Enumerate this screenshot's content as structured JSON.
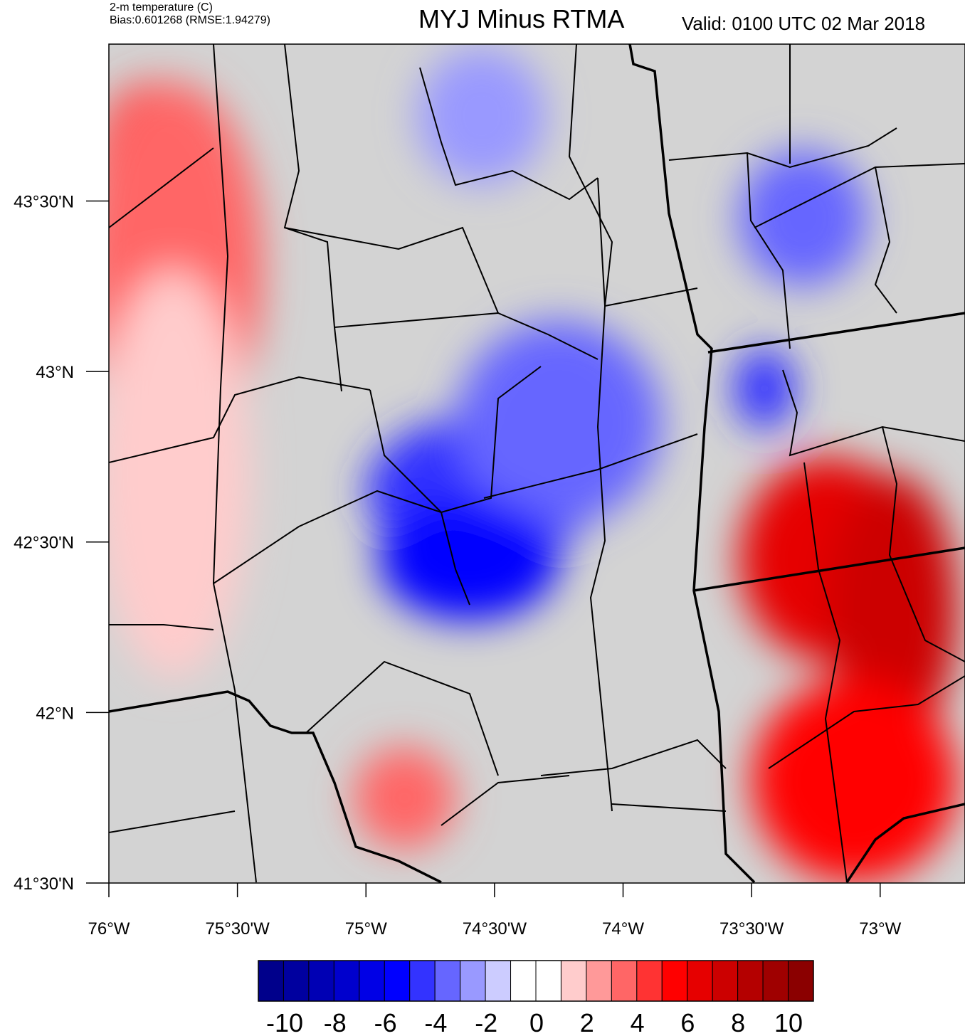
{
  "header": {
    "variable": "2-m temperature (C)",
    "stats": "Bias:0.601268 (RMSE:1.94279)",
    "title": "MYJ Minus RTMA",
    "valid": "Valid: 0100 UTC 02 Mar 2018"
  },
  "map": {
    "lon_range": [
      -76.0,
      -72.67
    ],
    "lat_range": [
      41.5,
      43.96
    ],
    "lon_ticks": [
      {
        "value": -76.0,
        "label": "76°W"
      },
      {
        "value": -75.5,
        "label": "75°30'W"
      },
      {
        "value": -75.0,
        "label": "75°W"
      },
      {
        "value": -74.5,
        "label": "74°30'W"
      },
      {
        "value": -74.0,
        "label": "74°W"
      },
      {
        "value": -73.5,
        "label": "73°30'W"
      },
      {
        "value": -73.0,
        "label": "73°W"
      }
    ],
    "lat_ticks": [
      {
        "value": 43.5,
        "label": "43°30'N"
      },
      {
        "value": 43.0,
        "label": "43°N"
      },
      {
        "value": 42.5,
        "label": "42°30'N"
      },
      {
        "value": 42.0,
        "label": "42°N"
      },
      {
        "value": 41.5,
        "label": "41°30'N"
      }
    ],
    "anomaly_blobs": [
      {
        "lon": -75.85,
        "lat": 43.55,
        "rlon": 0.22,
        "rlat": 0.3,
        "level": 4
      },
      {
        "lon": -75.75,
        "lat": 43.3,
        "rlon": 0.35,
        "rlat": 0.55,
        "level": 3
      },
      {
        "lon": -75.75,
        "lat": 42.7,
        "rlon": 0.3,
        "rlat": 0.6,
        "level": 1
      },
      {
        "lon": -74.55,
        "lat": 42.65,
        "rlon": 0.45,
        "rlat": 0.22,
        "level": -5
      },
      {
        "lon": -74.25,
        "lat": 42.85,
        "rlon": 0.4,
        "rlat": 0.3,
        "level": -4
      },
      {
        "lon": -74.6,
        "lat": 42.45,
        "rlon": 0.35,
        "rlat": 0.18,
        "level": -6
      },
      {
        "lon": -74.55,
        "lat": 43.75,
        "rlon": 0.25,
        "rlat": 0.2,
        "level": -3
      },
      {
        "lon": -73.3,
        "lat": 43.45,
        "rlon": 0.25,
        "rlat": 0.2,
        "level": -4
      },
      {
        "lon": -73.45,
        "lat": 42.95,
        "rlon": 0.12,
        "rlat": 0.12,
        "level": -5
      },
      {
        "lon": -73.2,
        "lat": 42.45,
        "rlon": 0.35,
        "rlat": 0.3,
        "level": 6
      },
      {
        "lon": -72.95,
        "lat": 42.3,
        "rlon": 0.25,
        "rlat": 0.4,
        "level": 7
      },
      {
        "lon": -73.1,
        "lat": 41.8,
        "rlon": 0.4,
        "rlat": 0.3,
        "level": 5
      },
      {
        "lon": -74.85,
        "lat": 41.75,
        "rlon": 0.2,
        "rlat": 0.15,
        "level": 3
      }
    ]
  },
  "colorbar": {
    "colors": [
      "#00008b",
      "#00009f",
      "#0000b4",
      "#0000cd",
      "#0000e6",
      "#0000ff",
      "#3333ff",
      "#6666ff",
      "#9999ff",
      "#ccccff",
      "#ffffff",
      "#ffffff",
      "#ffcccc",
      "#ff9999",
      "#ff6666",
      "#ff3333",
      "#ff0000",
      "#e60000",
      "#cc0000",
      "#b40000",
      "#9f0000",
      "#8b0000"
    ],
    "labels": [
      "-10",
      "-8",
      "-6",
      "-4",
      "-2",
      "0",
      "2",
      "4",
      "6",
      "8",
      "10"
    ]
  }
}
